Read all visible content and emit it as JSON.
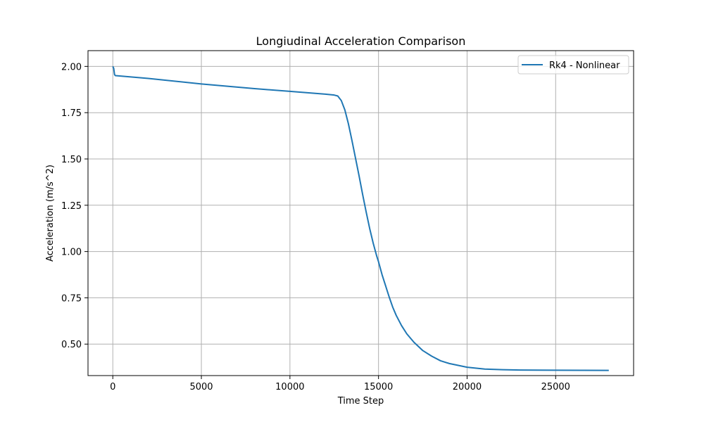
{
  "chart_data": {
    "type": "line",
    "title": "Longiudinal Acceleration Comparison",
    "xlabel": "Time Step",
    "ylabel": "Acceleration (m/s^2)",
    "xlim": [
      -1400,
      29400
    ],
    "ylim": [
      0.33,
      2.085
    ],
    "xticks": [
      0,
      5000,
      10000,
      15000,
      20000,
      25000
    ],
    "yticks": [
      0.5,
      0.75,
      1.0,
      1.25,
      1.5,
      1.75,
      2.0
    ],
    "xtick_labels": [
      "0",
      "5000",
      "10000",
      "15000",
      "20000",
      "25000"
    ],
    "ytick_labels": [
      "0.50",
      "0.75",
      "1.00",
      "1.25",
      "1.50",
      "1.75",
      "2.00"
    ],
    "grid": true,
    "legend_position": "top-right",
    "colors": {
      "series": "#1f77b4",
      "grid": "#b0b0b0"
    },
    "series": [
      {
        "name": "Rk4 - Nonlinear",
        "x": [
          0,
          50,
          100,
          150,
          2000,
          5000,
          8000,
          10000,
          12000,
          12500,
          12700,
          12900,
          13100,
          13300,
          13500,
          13700,
          13900,
          14100,
          14300,
          14500,
          14700,
          14900,
          15000,
          15200,
          15400,
          15600,
          15800,
          16000,
          16300,
          16600,
          17000,
          17500,
          18000,
          18500,
          19000,
          19500,
          20000,
          21000,
          22000,
          23000,
          25000,
          28000
        ],
        "y": [
          2.0,
          1.99,
          1.955,
          1.95,
          1.935,
          1.905,
          1.88,
          1.865,
          1.85,
          1.845,
          1.84,
          1.815,
          1.765,
          1.69,
          1.6,
          1.505,
          1.41,
          1.31,
          1.215,
          1.125,
          1.045,
          0.975,
          0.945,
          0.875,
          0.815,
          0.755,
          0.7,
          0.655,
          0.6,
          0.555,
          0.51,
          0.465,
          0.435,
          0.41,
          0.395,
          0.385,
          0.375,
          0.365,
          0.362,
          0.36,
          0.359,
          0.358
        ]
      }
    ]
  }
}
